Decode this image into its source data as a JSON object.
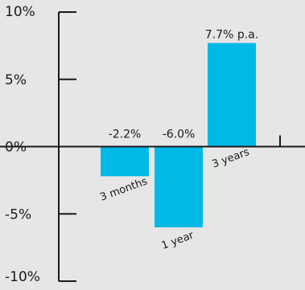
{
  "chart_data": {
    "type": "bar",
    "categories": [
      "3 months",
      "1 year",
      "3 years"
    ],
    "values": [
      -2.2,
      -6.0,
      7.7
    ],
    "data_labels": [
      "-2.2%",
      "-6.0%",
      "7.7% p.a."
    ],
    "ylim": [
      -10,
      10
    ],
    "yticks": [
      10,
      5,
      0,
      -5,
      -10
    ],
    "ytick_labels": [
      "10%",
      "5%",
      "0%",
      "-5%",
      "-10%"
    ],
    "grid": false,
    "title": "",
    "xlabel": "",
    "ylabel": "",
    "colors": {
      "bar": "#00b9e6",
      "axis": "#1a1a1a",
      "background": "#e6e6e6"
    }
  }
}
